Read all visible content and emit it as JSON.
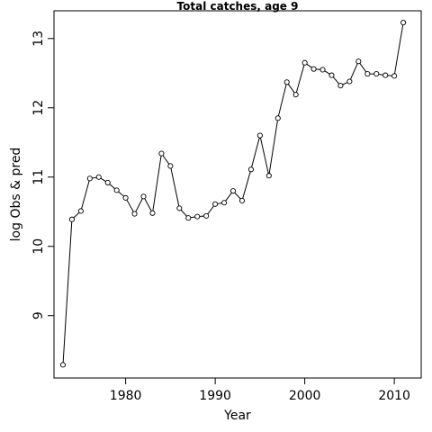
{
  "chart_data": {
    "type": "line",
    "title": "Total catches, age 9",
    "xlabel": "Year",
    "ylabel": "log Obs & pred",
    "xlim": [
      1972,
      2013
    ],
    "ylim": [
      8.1,
      13.4
    ],
    "x_ticks": [
      1980,
      1990,
      2000,
      2010
    ],
    "y_ticks": [
      9,
      10,
      11,
      12,
      13
    ],
    "markers": "open-circle",
    "grid": false,
    "x": [
      1973,
      1974,
      1975,
      1976,
      1977,
      1978,
      1979,
      1980,
      1981,
      1982,
      1983,
      1984,
      1985,
      1986,
      1987,
      1988,
      1989,
      1990,
      1991,
      1992,
      1993,
      1994,
      1995,
      1996,
      1997,
      1998,
      1999,
      2000,
      2001,
      2002,
      2003,
      2004,
      2005,
      2006,
      2007,
      2008,
      2009,
      2010,
      2011
    ],
    "y": [
      8.29,
      10.39,
      10.51,
      10.98,
      11.0,
      10.92,
      10.81,
      10.7,
      10.47,
      10.72,
      10.48,
      11.34,
      11.16,
      10.55,
      10.41,
      10.43,
      10.44,
      10.61,
      10.63,
      10.8,
      10.66,
      11.11,
      11.6,
      11.02,
      11.85,
      12.37,
      12.19,
      12.65,
      12.56,
      12.55,
      12.47,
      12.32,
      12.38,
      12.67,
      12.49,
      12.49,
      12.47,
      12.46,
      13.23
    ]
  }
}
